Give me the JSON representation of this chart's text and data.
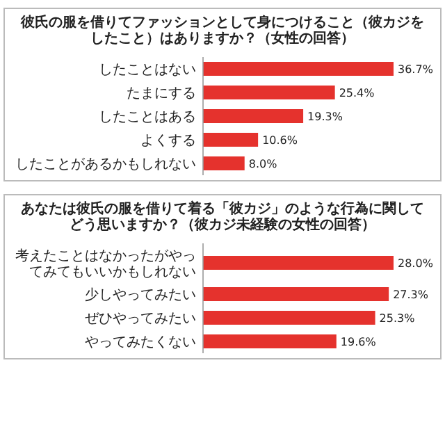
{
  "chart_data": [
    {
      "type": "bar",
      "orientation": "horizontal",
      "title": "彼氏の服を借りてファッションとして身につけること（彼カジをしたこと）はありますか？（女性の回答）",
      "categories": [
        "したことはない",
        "たまにする",
        "したことはある",
        "よくする",
        "したことがあるかもしれない"
      ],
      "values": [
        36.7,
        25.4,
        19.3,
        10.6,
        8.0
      ],
      "value_labels": [
        "36.7%",
        "25.4%",
        "19.3%",
        "10.6%",
        "8.0%"
      ],
      "color": "#e5322d"
    },
    {
      "type": "bar",
      "orientation": "horizontal",
      "title": "あなたは彼氏の服を借りて着る「彼カジ」のような行為に関してどう思いますか？（彼カジ未経験の女性の回答）",
      "categories": [
        "考えたことはなかったがやってみてもいいかもしれない",
        "少しやってみたい",
        "ぜひやってみたい",
        "やってみたくない"
      ],
      "values": [
        28.0,
        27.3,
        25.3,
        19.6
      ],
      "value_labels": [
        "28.0%",
        "27.3%",
        "25.3%",
        "19.6%"
      ],
      "color": "#e5322d"
    }
  ]
}
